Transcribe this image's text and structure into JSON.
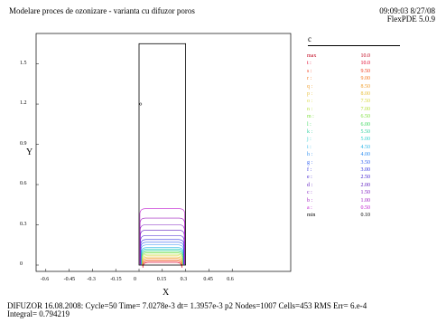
{
  "header": {
    "title": "Modelare proces de ozonizare - varianta cu difuzor poros",
    "timestamp": "09:09:03 8/27/08",
    "version": "FlexPDE 5.0.9"
  },
  "footer": {
    "line1": "DIFUZOR 16.08.2008:  Cycle=50  Time= 7.0278e-3  dt= 1.3957e-3  p2  Nodes=1007  Cells=453  RMS Err= 6.e-4",
    "line2": "Integral=  0.794219"
  },
  "legend": {
    "title": "c",
    "entries": [
      {
        "label": "max",
        "value": "10.0",
        "color": "#c0001a"
      },
      {
        "label": "t :",
        "value": "10.0",
        "color": "#e0002a"
      },
      {
        "label": "s :",
        "value": "9.50",
        "color": "#f04020"
      },
      {
        "label": "r :",
        "value": "9.00",
        "color": "#f57820"
      },
      {
        "label": "q :",
        "value": "8.50",
        "color": "#f0a030"
      },
      {
        "label": "p :",
        "value": "8.00",
        "color": "#e8c040"
      },
      {
        "label": "o :",
        "value": "7.50",
        "color": "#d8d840"
      },
      {
        "label": "n :",
        "value": "7.00",
        "color": "#b8e040"
      },
      {
        "label": "m :",
        "value": "6.50",
        "color": "#80e040"
      },
      {
        "label": "l :",
        "value": "6.00",
        "color": "#40d860"
      },
      {
        "label": "k :",
        "value": "5.50",
        "color": "#30d0a0"
      },
      {
        "label": "j :",
        "value": "5.00",
        "color": "#30d0d0"
      },
      {
        "label": "i :",
        "value": "4.50",
        "color": "#30b8e8"
      },
      {
        "label": "h :",
        "value": "4.00",
        "color": "#3090f0"
      },
      {
        "label": "g :",
        "value": "3.50",
        "color": "#3060f0"
      },
      {
        "label": "f :",
        "value": "3.00",
        "color": "#3030e0"
      },
      {
        "label": "e :",
        "value": "2.50",
        "color": "#4020d0"
      },
      {
        "label": "d :",
        "value": "2.00",
        "color": "#6020c0"
      },
      {
        "label": "c :",
        "value": "1.50",
        "color": "#8020c0"
      },
      {
        "label": "b :",
        "value": "1.00",
        "color": "#a020c0"
      },
      {
        "label": "a :",
        "value": "0.50",
        "color": "#c020d0"
      },
      {
        "label": "min",
        "value": "0.10",
        "color": "#000000"
      }
    ]
  },
  "chart_data": {
    "type": "contour",
    "title": "",
    "xlabel": "X",
    "ylabel": "Y",
    "xlim": [
      -0.65,
      0.6
    ],
    "ylim": [
      -0.05,
      1.7
    ],
    "x_ticks": [
      "-0.6",
      "-0.3",
      "0",
      "0.3",
      "0.6"
    ],
    "x_ticks_extra": [
      "-0.45",
      "-0.15",
      "0.15",
      "0.45"
    ],
    "y_ticks": [
      "0",
      "0.3",
      "0.6",
      "0.9",
      "1.2",
      "1.5"
    ],
    "domain": {
      "x": [
        0,
        0.3
      ],
      "y": [
        0,
        1.65
      ]
    },
    "point_marker_y": 1.2,
    "contour_levels": [
      10.0,
      9.5,
      9.0,
      8.5,
      8.0,
      7.5,
      7.0,
      6.5,
      6.0,
      5.5,
      5.0,
      4.5,
      4.0,
      3.5,
      3.0,
      2.5,
      2.0,
      1.5,
      1.0,
      0.5
    ],
    "contour_tops": [
      0.02,
      0.03,
      0.04,
      0.05,
      0.06,
      0.07,
      0.08,
      0.09,
      0.1,
      0.11,
      0.12,
      0.13,
      0.15,
      0.17,
      0.19,
      0.22,
      0.26,
      0.3,
      0.35,
      0.42
    ]
  }
}
